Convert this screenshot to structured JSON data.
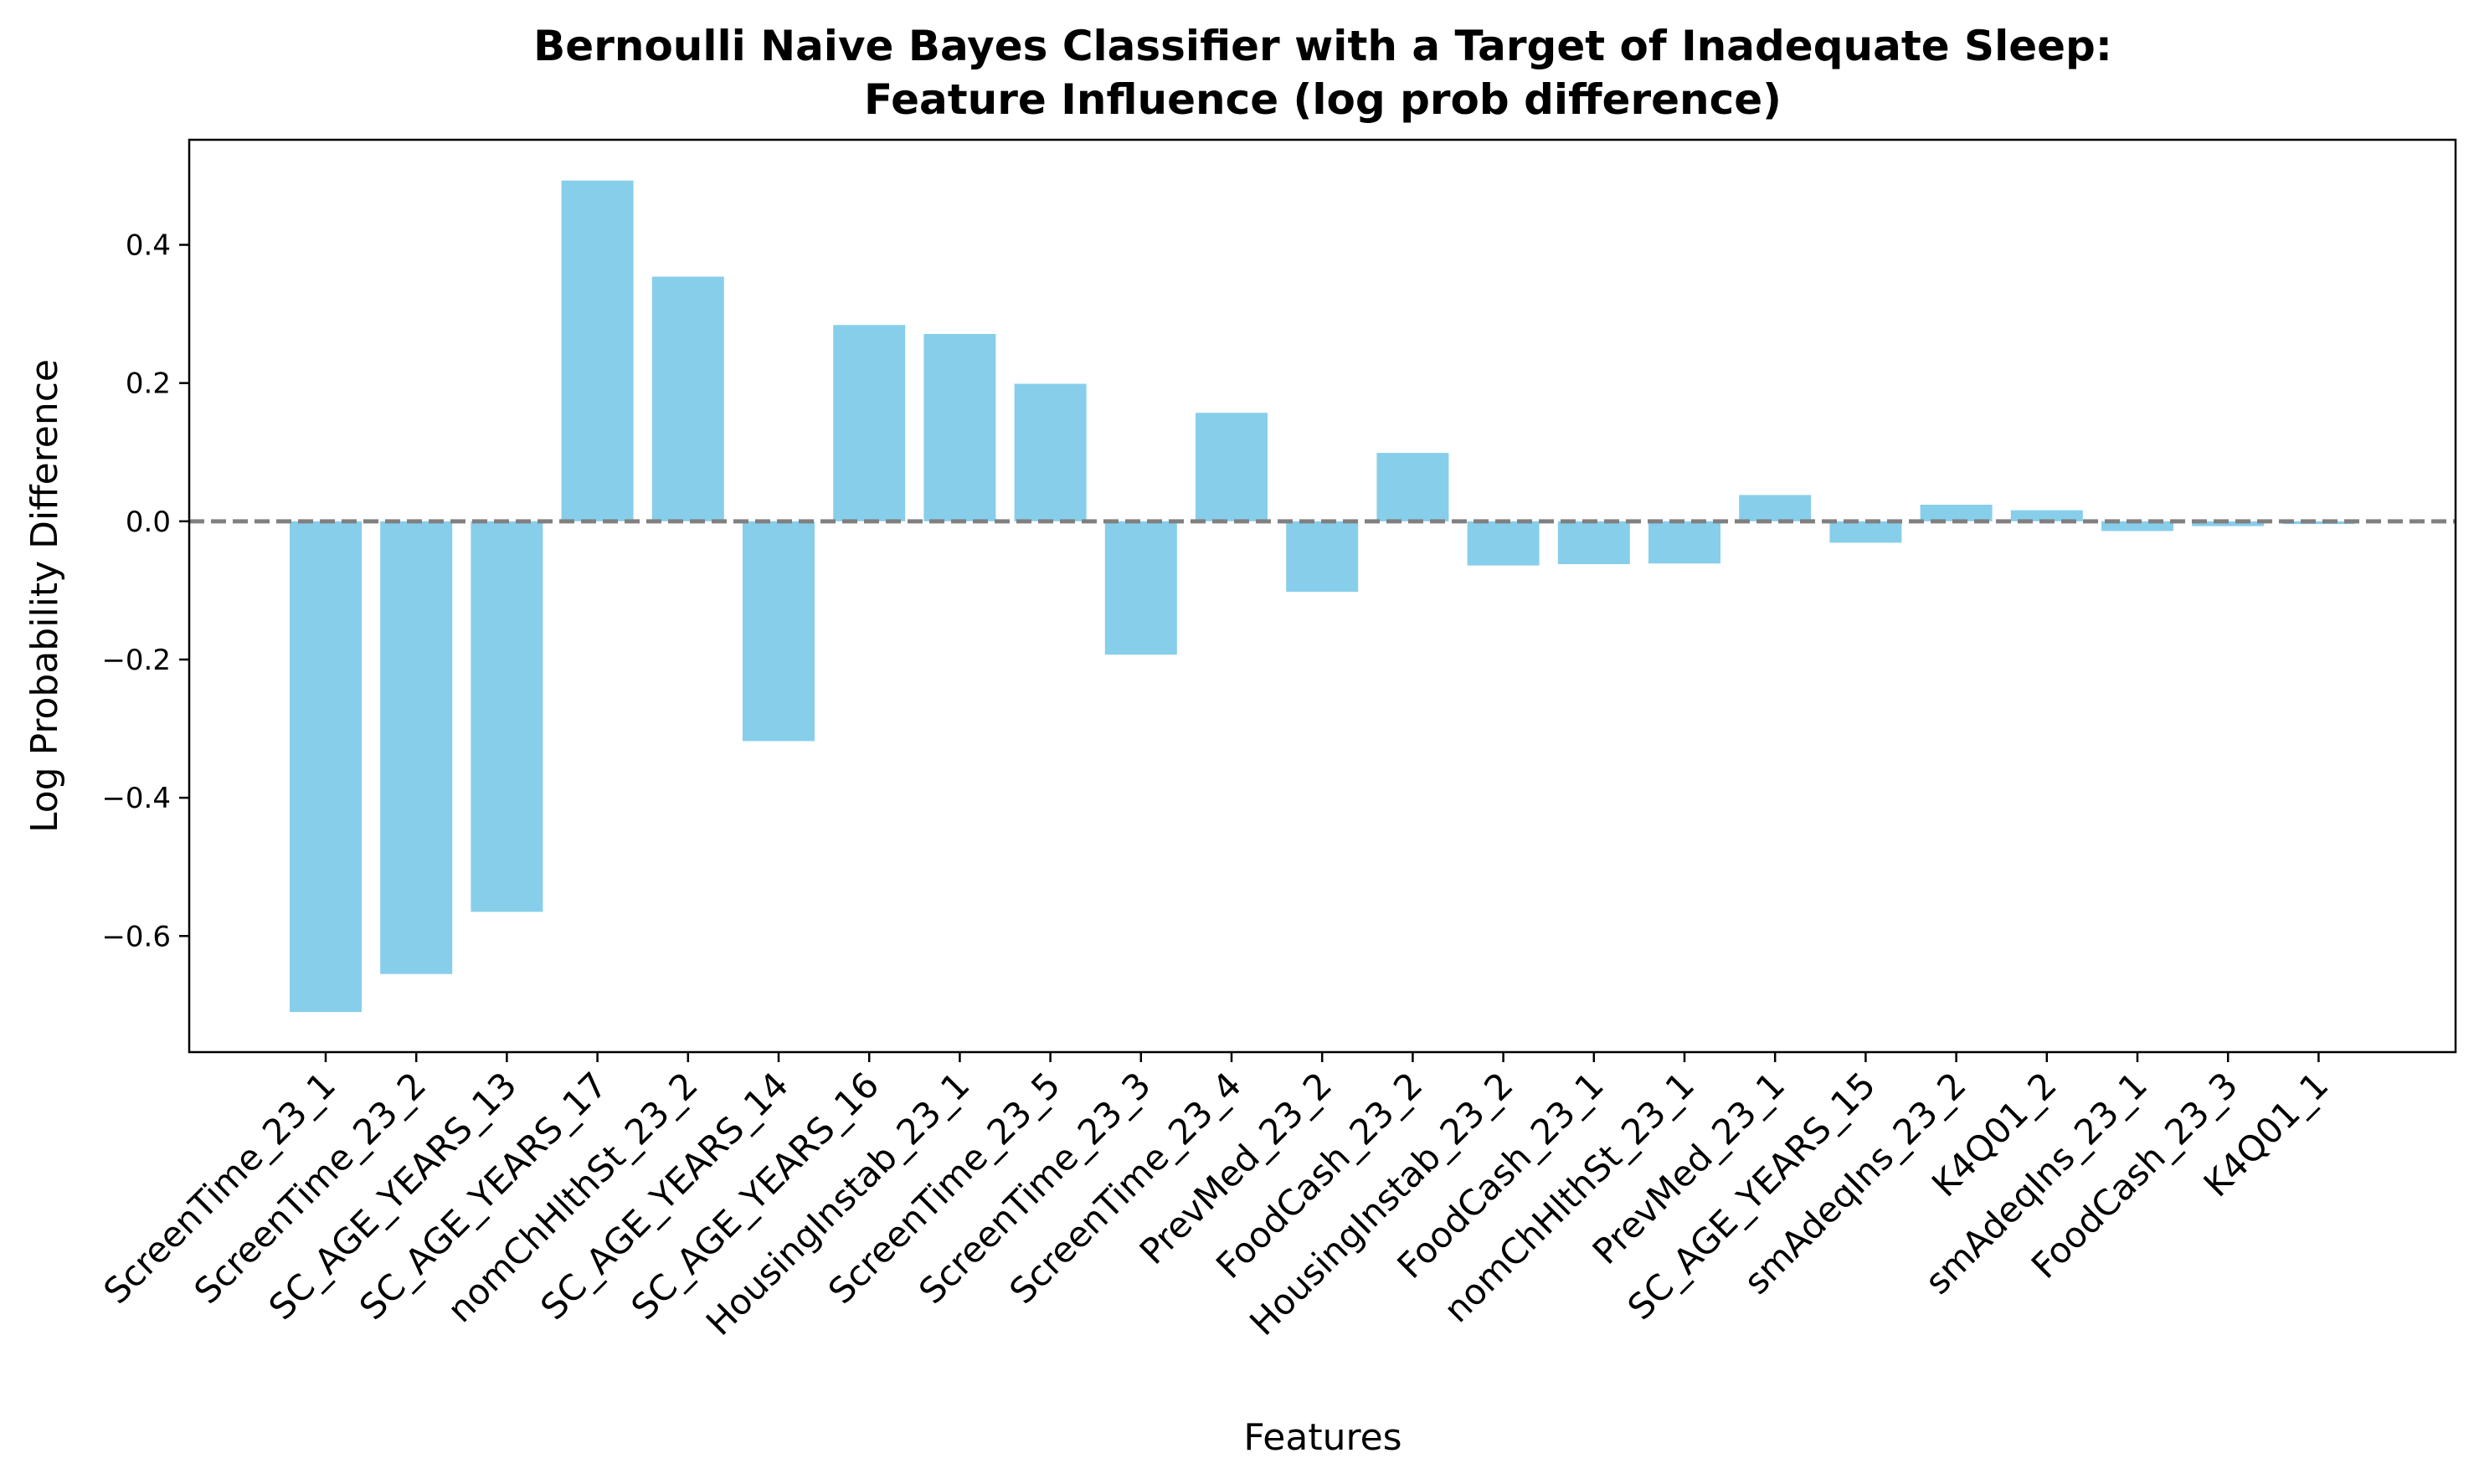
{
  "chart_data": {
    "type": "bar",
    "title": "Bernoulli Naive Bayes Classifier with a Target of Inadequate Sleep:",
    "subtitle": "Feature Influence (log prob difference)",
    "xlabel": "Features",
    "ylabel": "Log Probability Difference",
    "categories": [
      "ScreenTime_23_1",
      "ScreenTime_23_2",
      "SC_AGE_YEARS_13",
      "SC_AGE_YEARS_17",
      "nomChHlthSt_23_2",
      "SC_AGE_YEARS_14",
      "SC_AGE_YEARS_16",
      "HousingInstab_23_1",
      "ScreenTime_23_5",
      "ScreenTime_23_3",
      "ScreenTime_23_4",
      "PrevMed_23_2",
      "FoodCash_23_2",
      "HousingInstab_23_2",
      "FoodCash_23_1",
      "nomChHlthSt_23_1",
      "PrevMed_23_1",
      "SC_AGE_YEARS_15",
      "smAdeqIns_23_2",
      "K4Q01_2",
      "smAdeqIns_23_1",
      "FoodCash_23_3",
      "K4Q01_1"
    ],
    "values": [
      -0.71,
      -0.655,
      -0.565,
      0.493,
      0.354,
      -0.318,
      0.284,
      0.271,
      0.199,
      -0.193,
      0.157,
      -0.102,
      0.099,
      -0.064,
      -0.062,
      -0.061,
      0.038,
      -0.031,
      0.024,
      0.016,
      -0.014,
      -0.007,
      -0.004
    ],
    "yticks": [
      -0.6,
      -0.4,
      -0.2,
      0.0,
      0.2,
      0.4
    ],
    "ytick_labels": [
      "−0.6",
      "−0.4",
      "−0.2",
      "0.0",
      "0.2",
      "0.4"
    ],
    "ylim": [
      -0.768,
      0.552
    ],
    "bar_color": "#87ceeb",
    "zero_line_color": "#808080",
    "zero_line_style": "dashed",
    "grid": false
  }
}
